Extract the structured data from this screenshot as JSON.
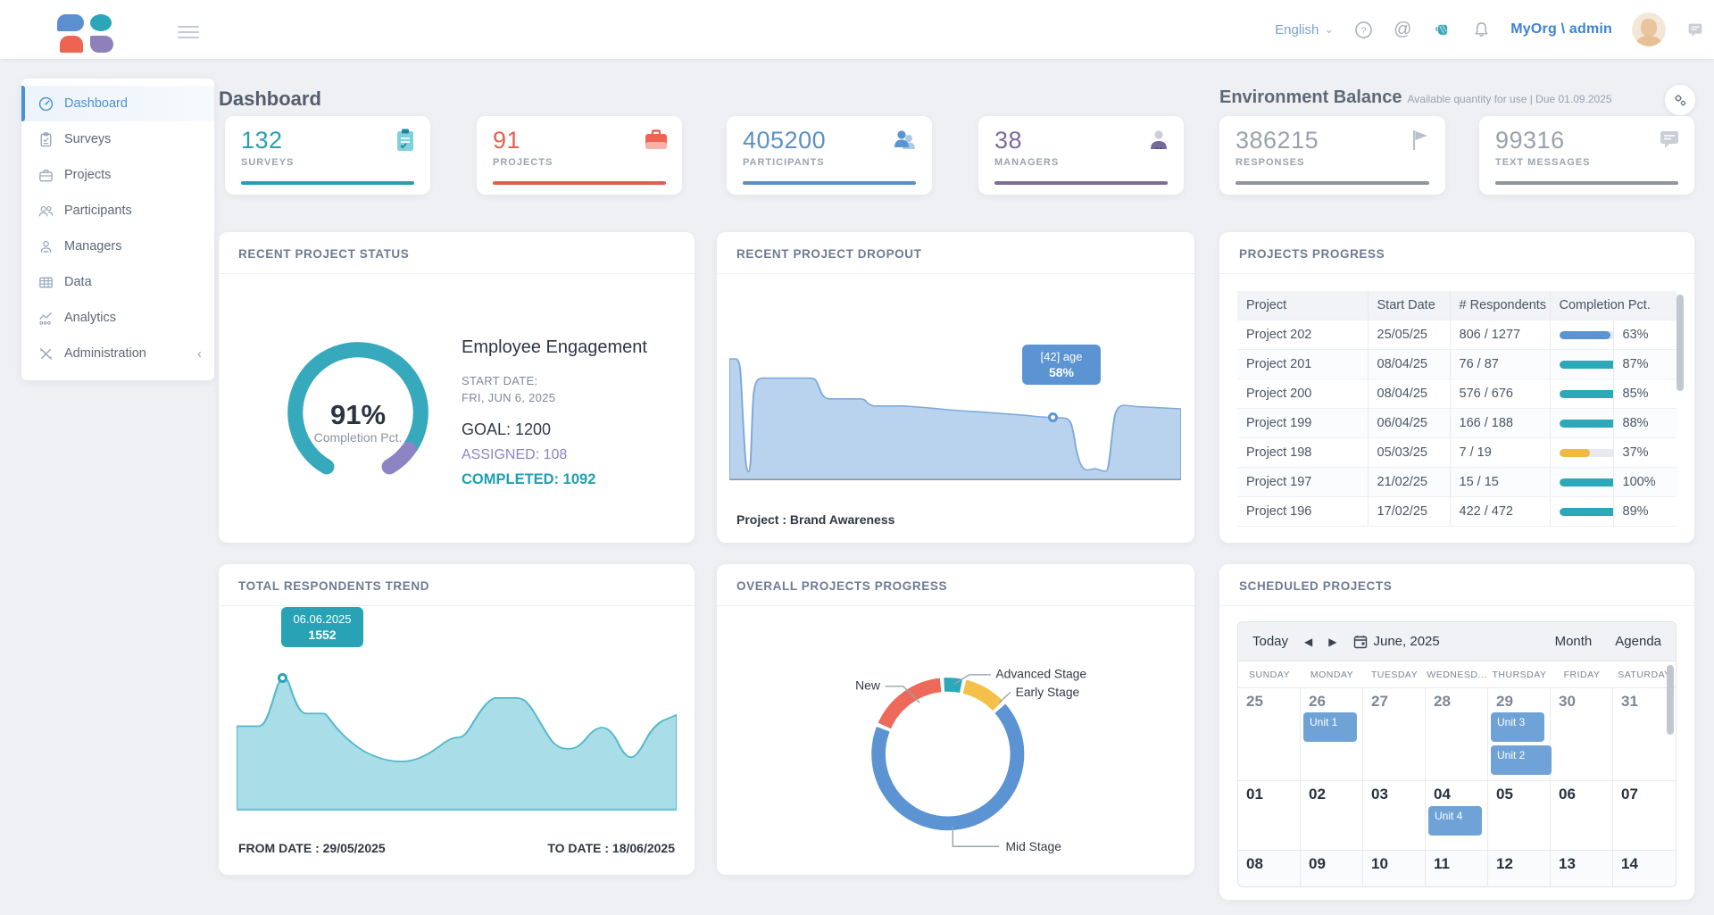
{
  "topbar": {
    "language": "English",
    "org_user": "MyOrg \\ admin",
    "icons": {
      "chevron_down": "⌄",
      "help": "?",
      "at": "@"
    }
  },
  "sidebar": {
    "items": [
      {
        "label": "Dashboard"
      },
      {
        "label": "Surveys"
      },
      {
        "label": "Projects"
      },
      {
        "label": "Participants"
      },
      {
        "label": "Managers"
      },
      {
        "label": "Data"
      },
      {
        "label": "Analytics"
      },
      {
        "label": "Administration",
        "collapse_icon": "‹"
      }
    ]
  },
  "page": {
    "title": "Dashboard"
  },
  "stats": [
    {
      "value": "132",
      "label": "SURVEYS",
      "color": "#2a9fb0"
    },
    {
      "value": "91",
      "label": "PROJECTS",
      "color": "#e3614f"
    },
    {
      "value": "405200",
      "label": "PARTICIPANTS",
      "color": "#5b8fc7"
    },
    {
      "value": "38",
      "label": "MANAGERS",
      "color": "#7c6b9b"
    }
  ],
  "environment": {
    "title": "Environment Balance",
    "subtitle": "Available quantity for use | Due 01.09.2025",
    "stats": [
      {
        "value": "386215",
        "label": "RESPONSES",
        "color": "#8f969e"
      },
      {
        "value": "99316",
        "label": "TEXT MESSAGES",
        "color": "#8f969e"
      }
    ]
  },
  "project_status": {
    "header": "RECENT PROJECT STATUS",
    "percent": "91%",
    "percent_label": "Completion Pct.",
    "project_name": "Employee Engagement",
    "start_date_label": "START DATE:",
    "start_date": "FRI, JUN 6, 2025",
    "goal": "GOAL: 1200",
    "assigned": "ASSIGNED: 108",
    "completed": "COMPLETED: 1092"
  },
  "dropout": {
    "header": "RECENT PROJECT DROPOUT",
    "tooltip_line1": "[42] age",
    "tooltip_line2": "58%",
    "caption": "Project : Brand Awareness"
  },
  "projects_progress": {
    "header": "PROJECTS PROGRESS",
    "columns": [
      "Project",
      "Start Date",
      "# Respondents",
      "Completion Pct."
    ],
    "rows": [
      {
        "project": "Project 202",
        "start_date": "25/05/25",
        "respondents": "806 / 1277",
        "pct": 63,
        "pct_label": "63%",
        "bar_color": "#5b93d3"
      },
      {
        "project": "Project 201",
        "start_date": "08/04/25",
        "respondents": "76 / 87",
        "pct": 87,
        "pct_label": "87%",
        "bar_color": "#2ba8ba"
      },
      {
        "project": "Project 200",
        "start_date": "08/04/25",
        "respondents": "576 / 676",
        "pct": 85,
        "pct_label": "85%",
        "bar_color": "#2ba8ba"
      },
      {
        "project": "Project 199",
        "start_date": "06/04/25",
        "respondents": "166 / 188",
        "pct": 88,
        "pct_label": "88%",
        "bar_color": "#2ba8ba"
      },
      {
        "project": "Project 198",
        "start_date": "05/03/25",
        "respondents": "7 / 19",
        "pct": 37,
        "pct_label": "37%",
        "bar_color": "#f2b844"
      },
      {
        "project": "Project 197",
        "start_date": "21/02/25",
        "respondents": "15 / 15",
        "pct": 100,
        "pct_label": "100%",
        "bar_color": "#2ba8ba"
      },
      {
        "project": "Project 196",
        "start_date": "17/02/25",
        "respondents": "422 / 472",
        "pct": 89,
        "pct_label": "89%",
        "bar_color": "#2ba8ba"
      }
    ]
  },
  "respondents_trend": {
    "header": "TOTAL RESPONDENTS TREND",
    "tooltip_date": "06.06.2025",
    "tooltip_value": "1552",
    "from": "FROM DATE : 29/05/2025",
    "to": "TO DATE : 18/06/2025"
  },
  "overall_progress": {
    "header": "OVERALL PROJECTS PROGRESS",
    "labels": {
      "new": "New",
      "advanced": "Advanced Stage",
      "early": "Early Stage",
      "mid": "Mid Stage"
    }
  },
  "calendar": {
    "header": "SCHEDULED PROJECTS",
    "today": "Today",
    "prev": "◀",
    "next": "▶",
    "month_label": "June, 2025",
    "view_month": "Month",
    "view_agenda": "Agenda",
    "day_names": [
      "SUNDAY",
      "MONDAY",
      "TUESDAY",
      "WEDNESD...",
      "THURSDAY",
      "FRIDAY",
      "SATURDAY"
    ],
    "weeks": [
      [
        "25",
        "26",
        "27",
        "28",
        "29",
        "30",
        "31"
      ],
      [
        "01",
        "02",
        "03",
        "04",
        "05",
        "06",
        "07"
      ],
      [
        "08",
        "09",
        "10",
        "11",
        "12",
        "13",
        "14"
      ]
    ],
    "events": [
      {
        "label": "Unit 1",
        "day": "26"
      },
      {
        "label": "Unit 3",
        "day": "29"
      },
      {
        "label": "Unit 2",
        "day": "29"
      },
      {
        "label": "Unit 4",
        "day": "04"
      }
    ]
  },
  "chart_data": [
    {
      "type": "pie",
      "variant": "gauge",
      "title": "RECENT PROJECT STATUS",
      "segments": [
        {
          "label": "Completed",
          "value": 91,
          "color": "#36a9bd"
        },
        {
          "label": "Remaining",
          "value": 9,
          "color": "#8c84c4"
        }
      ],
      "center_text": "91% Completion Pct."
    },
    {
      "type": "area",
      "title": "RECENT PROJECT DROPOUT",
      "color": "#b9d3ee",
      "highlight_point": {
        "x": "[42] age",
        "y": "58%"
      },
      "x_axis": "age buckets (unlabeled)",
      "y_axis": "dropout pct (unlabeled)"
    },
    {
      "type": "area",
      "title": "TOTAL RESPONDENTS TREND",
      "color": "#a9dde7",
      "highlight_point": {
        "x": "06.06.2025",
        "y": 1552
      },
      "x_range": [
        "29/05/2025",
        "18/06/2025"
      ]
    },
    {
      "type": "pie",
      "variant": "donut",
      "title": "OVERALL PROJECTS PROGRESS",
      "labels": [
        "New",
        "Advanced Stage",
        "Early Stage",
        "Mid Stage"
      ],
      "values_pct_est": [
        17,
        4,
        9,
        70
      ],
      "colors": [
        "#ed6a5a",
        "#2ba8ba",
        "#f5c04a",
        "#5b93d3"
      ]
    }
  ]
}
